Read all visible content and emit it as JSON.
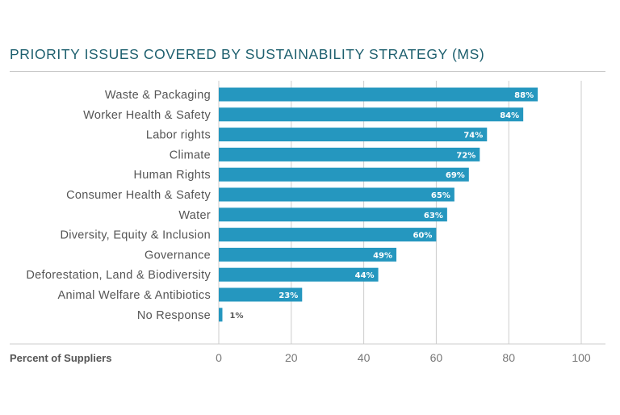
{
  "chart_data": {
    "type": "bar",
    "orientation": "horizontal",
    "title": "PRIORITY ISSUES COVERED BY SUSTAINABILITY STRATEGY (MS)",
    "xlabel": "Percent of Suppliers",
    "ylabel": "",
    "categories": [
      "Waste & Packaging",
      "Worker Health & Safety",
      "Labor rights",
      "Climate",
      "Human Rights",
      "Consumer Health & Safety",
      "Water",
      "Diversity, Equity & Inclusion",
      "Governance",
      "Deforestation, Land & Biodiversity",
      "Animal Welfare & Antibiotics",
      "No Response"
    ],
    "values": [
      88,
      84,
      74,
      72,
      69,
      65,
      63,
      60,
      49,
      44,
      23,
      1
    ],
    "value_labels": [
      "88%",
      "84%",
      "74%",
      "72%",
      "69%",
      "65%",
      "63%",
      "60%",
      "49%",
      "44%",
      "23%",
      "1%"
    ],
    "xlim": [
      0,
      100
    ],
    "xticks": [
      0,
      20,
      40,
      60,
      80,
      100
    ],
    "xtick_labels": [
      "0",
      "20",
      "40",
      "60",
      "80",
      "100"
    ],
    "grid": "vertical",
    "legend": "none",
    "colors": {
      "bar": "#2597bf",
      "title": "#1d5f6e",
      "grid": "#cccccc",
      "value_label_inside": "#ffffff",
      "value_label_outside": "#555555"
    }
  }
}
